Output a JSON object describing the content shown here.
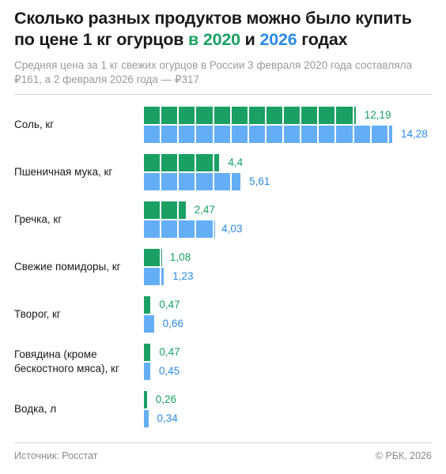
{
  "header": {
    "title_part1": "Сколько разных продуктов можно было купить по цене 1 кг огурцов ",
    "title_year1": "в 2020",
    "title_mid": " и ",
    "title_year2": "2026",
    "title_end": " годах",
    "subtitle": "Средняя цена за 1 кг свежих огурцов в России 3 февраля 2020 года составляла ₽161, а 2 февраля 2026 года — ₽317"
  },
  "footer": {
    "source": "Источник: Росстат",
    "copyright": "© РБК, 2026"
  },
  "colors": {
    "series_2020": "#1aa063",
    "series_2026": "#64aef5",
    "label_2026": "#2b8ae6"
  },
  "chart_data": {
    "type": "bar",
    "orientation": "horizontal",
    "categories": [
      "Соль, кг",
      "Пшеничная мука, кг",
      "Гречка, кг",
      "Свежие помидоры, кг",
      "Творог, кг",
      "Говядина (кроме бескостного мяса), кг",
      "Водка, л"
    ],
    "series": [
      {
        "values": [
          12.19,
          4.4,
          2.47,
          1.08,
          0.47,
          0.47,
          0.26
        ],
        "labels": [
          "12,19",
          "4,4",
          "2,47",
          "1,08",
          "0,47",
          "0,47",
          "0,26"
        ]
      },
      {
        "values": [
          14.28,
          5.61,
          4.03,
          1.23,
          0.66,
          0.45,
          0.34
        ],
        "labels": [
          "14,28",
          "5,61",
          "4,03",
          "1,23",
          "0,66",
          "0,45",
          "0,34"
        ]
      }
    ],
    "xlim": [
      0,
      14.28
    ],
    "grid": false,
    "legend": "none"
  }
}
